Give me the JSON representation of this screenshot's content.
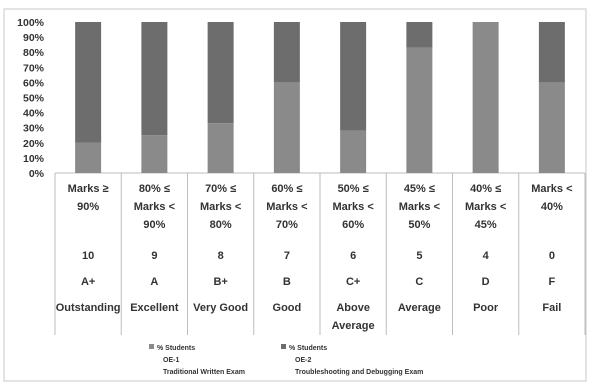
{
  "chart_data": {
    "type": "bar",
    "stacked": true,
    "percent_stacked": true,
    "categories": [
      [
        "Marks ≥",
        "90%"
      ],
      [
        "80% ≤",
        "Marks <",
        "90%"
      ],
      [
        "70% ≤",
        "Marks <",
        "80%"
      ],
      [
        "60% ≤",
        "Marks <",
        "70%"
      ],
      [
        "50% ≤",
        "Marks <",
        "60%"
      ],
      [
        "45% ≤",
        "Marks <",
        "50%"
      ],
      [
        "40% ≤",
        "Marks <",
        "45%"
      ],
      [
        "Marks <",
        "40%"
      ]
    ],
    "grade_points": [
      "10",
      "9",
      "8",
      "7",
      "6",
      "5",
      "4",
      "0"
    ],
    "letter_grades": [
      "A+",
      "A",
      "B+",
      "B",
      "C+",
      "C",
      "D",
      "F"
    ],
    "descriptions": [
      [
        "Outstanding"
      ],
      [
        "Excellent"
      ],
      [
        "Very Good"
      ],
      [
        "Good"
      ],
      [
        "Above",
        "Average"
      ],
      [
        "Average"
      ],
      [
        "Poor"
      ],
      [
        "Fail"
      ]
    ],
    "series": [
      {
        "name": [
          "% Students",
          "OE-1",
          "Traditional Written Exam"
        ],
        "values": [
          20,
          25,
          33,
          60,
          28,
          83,
          100,
          60
        ],
        "color": "#8a8a8a"
      },
      {
        "name": [
          "% Students",
          "OE-2",
          "Troubleshooting and Debugging Exam"
        ],
        "values": [
          80,
          75,
          67,
          40,
          72,
          17,
          0,
          40
        ],
        "color": "#6d6d6d"
      }
    ],
    "yticks": [
      "0%",
      "10%",
      "20%",
      "30%",
      "40%",
      "50%",
      "60%",
      "70%",
      "80%",
      "90%",
      "100%"
    ],
    "ylim": [
      0,
      100
    ],
    "grid": false,
    "legend_position": "bottom"
  }
}
